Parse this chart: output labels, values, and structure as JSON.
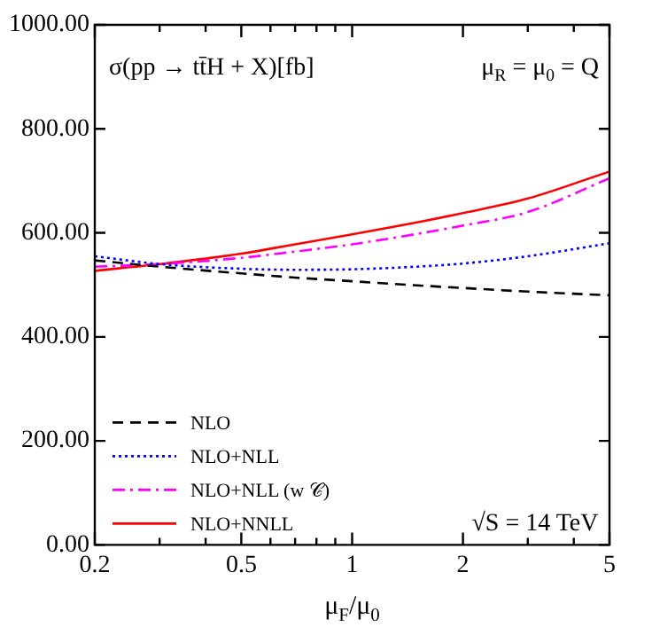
{
  "chart_data": {
    "type": "line",
    "xlabel": "μ$_{F}$/μ$_{0}$",
    "log": "x",
    "x": [
      0.2,
      0.3,
      0.5,
      0.7,
      1,
      1.5,
      2,
      3,
      5
    ],
    "series": [
      {
        "name": "NLO",
        "color": "#000000",
        "line_style": "dashed",
        "values": [
          547,
          535,
          522,
          514,
          507,
          499,
          494,
          487,
          480
        ]
      },
      {
        "name": "NLO+NLL",
        "color": "#0000ff",
        "line_style": "dotted",
        "values": [
          555,
          540,
          531,
          529,
          530,
          535,
          541,
          555,
          580
        ]
      },
      {
        "name": "NLO+NLL (w 𝒞)",
        "color": "#ff00ff",
        "line_style": "dashdot",
        "values": [
          535,
          540,
          552,
          564,
          578,
          598,
          614,
          640,
          705
        ]
      },
      {
        "name": "NLO+NNLL",
        "color": "#ff0000",
        "line_style": "solid",
        "values": [
          527,
          540,
          560,
          578,
          597,
          620,
          638,
          666,
          718
        ]
      }
    ],
    "xlim": [
      0.2,
      5
    ],
    "xticks": [
      0.2,
      {
        "value": 0.3,
        "label": null
      },
      {
        "value": 0.4,
        "label": null
      },
      0.5,
      {
        "value": 0.6,
        "label": null
      },
      {
        "value": 0.7,
        "label": null
      },
      {
        "value": 0.8,
        "label": null
      },
      {
        "value": 0.9,
        "label": null
      },
      1,
      2,
      {
        "value": 3,
        "label": null
      },
      {
        "value": 4,
        "label": null
      },
      5
    ],
    "ylim": [
      0,
      1000
    ],
    "yticks": [
      {
        "value": 0,
        "label": "0.00"
      },
      {
        "value": 200,
        "label": "200.00"
      },
      {
        "value": 400,
        "label": "400.00"
      },
      {
        "value": 600,
        "label": "600.00"
      },
      {
        "value": 800,
        "label": "800.00"
      },
      {
        "value": 1000,
        "label": "1000.00"
      }
    ],
    "annotations": [
      "σ(pp → tt̄H + X)[fb]",
      "μ$_{R}$ = μ$_{0}$ = Q",
      "√S = 14 TeV"
    ],
    "legend": "bottom left",
    "marker": "none",
    "grid": false
  }
}
